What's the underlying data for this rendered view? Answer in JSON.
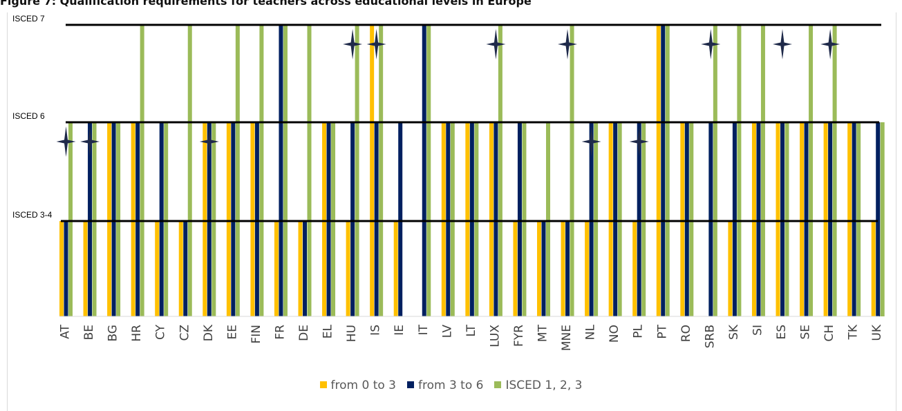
{
  "title": "Figure 7: Qualification requirements for teachers across educational levels in Europe",
  "colors": {
    "from_0_to_3": "#ffc000",
    "from_3_to_6": "#002060",
    "isced_123": "#9bbb59",
    "marker": "#1f2a4a"
  },
  "chart_data": {
    "type": "bar",
    "title": "Figure 7: Qualification requirements for teachers across educational levels in Europe",
    "xlabel": "",
    "ylabel": "",
    "y_levels": [
      "ISCED 3-4",
      "ISCED 6",
      "ISCED 7"
    ],
    "ylim": [
      0,
      7
    ],
    "legend_position": "bottom",
    "categories": [
      "AT",
      "BE",
      "BG",
      "HR",
      "CY",
      "CZ",
      "DK",
      "EE",
      "FIN",
      "FR",
      "DE",
      "EL",
      "HU",
      "IS",
      "IE",
      "IT",
      "LV",
      "LT",
      "LUX",
      "FYR",
      "MT",
      "MNE",
      "NL",
      "NO",
      "PL",
      "PT",
      "RO",
      "SRB",
      "SK",
      "SI",
      "ES",
      "SE",
      "CH",
      "TK",
      "UK"
    ],
    "series": [
      {
        "name": "from 0 to 3",
        "values": [
          3,
          3,
          6,
          6,
          3,
          3,
          6,
          6,
          6,
          3,
          3,
          6,
          3,
          7,
          3,
          null,
          6,
          6,
          6,
          3,
          3,
          3,
          3,
          6,
          3,
          7,
          6,
          null,
          3,
          6,
          6,
          6,
          6,
          6,
          3
        ]
      },
      {
        "name": "from 3 to 6",
        "values": [
          3,
          6,
          6,
          6,
          6,
          3,
          6,
          6,
          6,
          7,
          3,
          6,
          6,
          6,
          6,
          7,
          6,
          6,
          6,
          6,
          3,
          3,
          6,
          6,
          6,
          7,
          6,
          6,
          6,
          6,
          6,
          6,
          6,
          6,
          6
        ]
      },
      {
        "name": "ISCED 1, 2, 3",
        "values": [
          6,
          6,
          6,
          7,
          6,
          7,
          6,
          7,
          7,
          7,
          7,
          6,
          7,
          7,
          null,
          7,
          6,
          6,
          7,
          6,
          6,
          7,
          6,
          6,
          6,
          7,
          6,
          7,
          7,
          7,
          6,
          7,
          7,
          6,
          6
        ]
      }
    ],
    "markers": [
      {
        "category": "AT",
        "level": 6
      },
      {
        "category": "BE",
        "level": 6
      },
      {
        "category": "DK",
        "level": 6
      },
      {
        "category": "HU",
        "level": 7
      },
      {
        "category": "IS",
        "level": 7
      },
      {
        "category": "LUX",
        "level": 7
      },
      {
        "category": "MNE",
        "level": 7
      },
      {
        "category": "NL",
        "level": 6
      },
      {
        "category": "PL",
        "level": 6
      },
      {
        "category": "SRB",
        "level": 7
      },
      {
        "category": "ES",
        "level": 7
      },
      {
        "category": "CH",
        "level": 7
      }
    ]
  }
}
